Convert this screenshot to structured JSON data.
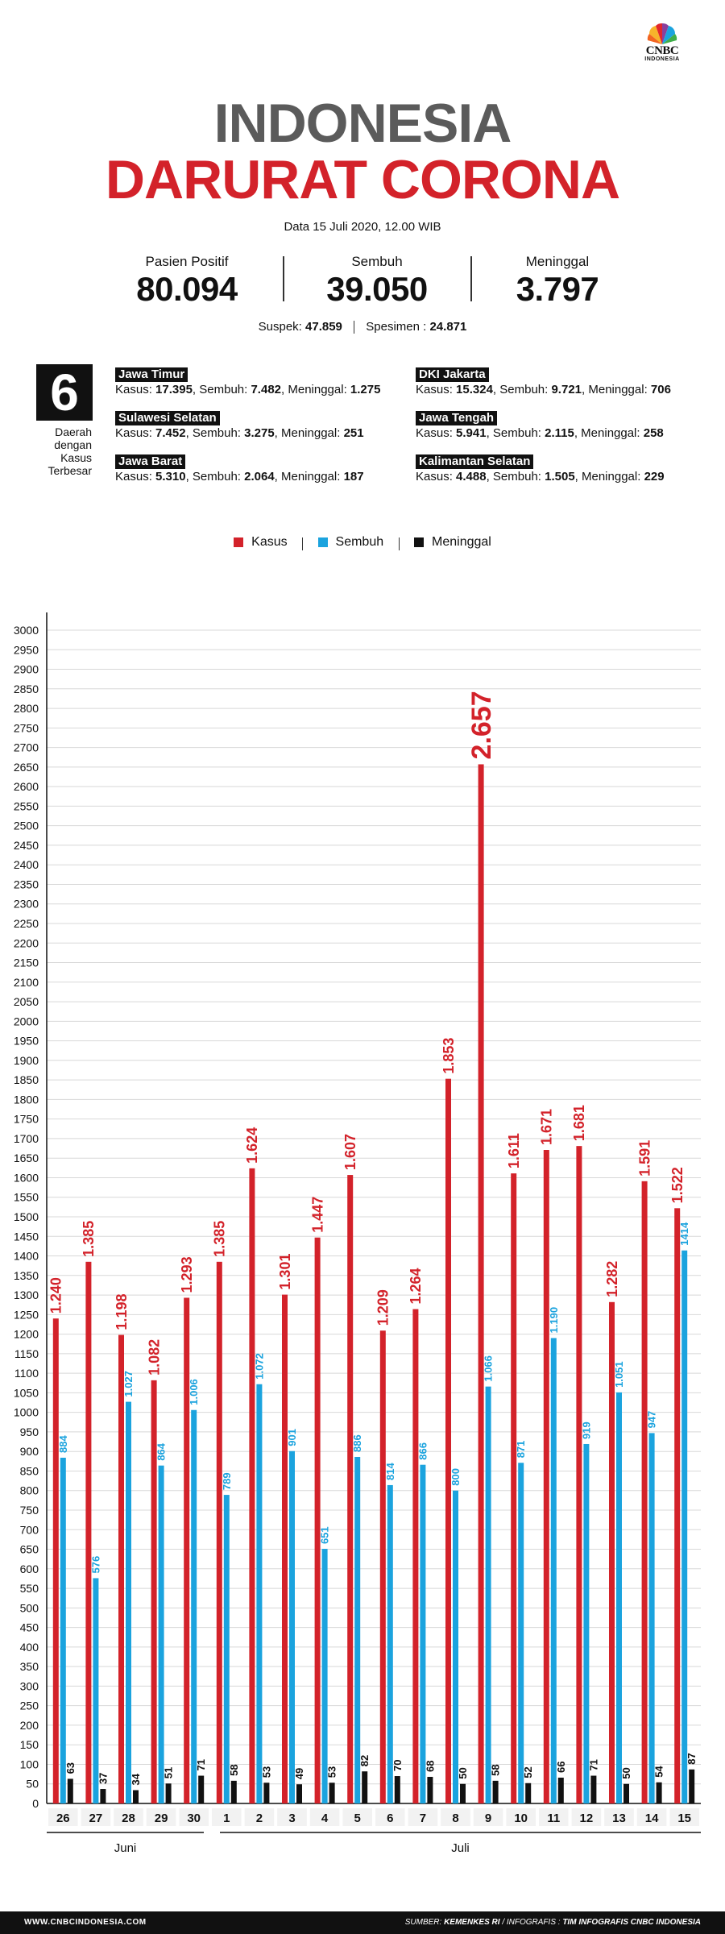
{
  "brand": {
    "name": "CNBC",
    "sub": "INDONESIA"
  },
  "header": {
    "title_line1": "INDONESIA",
    "title_line2": "DARURAT CORONA",
    "date": "Data 15 Juli 2020, 12.00 WIB"
  },
  "stats": [
    {
      "label": "Pasien Positif",
      "value": "80.094"
    },
    {
      "label": "Sembuh",
      "value": "39.050"
    },
    {
      "label": "Meninggal",
      "value": "3.797"
    }
  ],
  "substats": {
    "suspek_label": "Suspek:",
    "suspek_value": "47.859",
    "spesimen_label": "Spesimen :",
    "spesimen_value": "24.871"
  },
  "regions_block": {
    "count": "6",
    "label": "Daerah dengan Kasus Terbesar",
    "regions": [
      {
        "name": "Jawa Timur",
        "kasus": "17.395",
        "sembuh": "7.482",
        "meninggal": "1.275"
      },
      {
        "name": "Sulawesi Selatan",
        "kasus": "7.452",
        "sembuh": "3.275",
        "meninggal": "251"
      },
      {
        "name": "Jawa Barat",
        "kasus": "5.310",
        "sembuh": "2.064",
        "meninggal": "187"
      },
      {
        "name": "DKI Jakarta",
        "kasus": "15.324",
        "sembuh": "9.721",
        "meninggal": "706"
      },
      {
        "name": "Jawa Tengah",
        "kasus": "5.941",
        "sembuh": "2.115",
        "meninggal": "258"
      },
      {
        "name": "Kalimantan Selatan",
        "kasus": "4.488",
        "sembuh": "1.505",
        "meninggal": "229"
      }
    ],
    "kasus_label": "Kasus:",
    "sembuh_label": "Sembuh:",
    "meninggal_label": "Meninggal:"
  },
  "colors": {
    "kasus": "#d3222a",
    "sembuh": "#1ba3de",
    "meninggal": "#111111",
    "title_gray": "#5b5b5b"
  },
  "chart_data": {
    "type": "bar",
    "title": "",
    "xlabel": "",
    "ylabel": "",
    "ylim": [
      0,
      3000
    ],
    "ytick_step": 50,
    "legend": "top-center",
    "categories": [
      "26",
      "27",
      "28",
      "29",
      "30",
      "1",
      "2",
      "3",
      "4",
      "5",
      "6",
      "7",
      "8",
      "9",
      "10",
      "11",
      "12",
      "13",
      "14",
      "15"
    ],
    "groups": [
      {
        "label": "Juni",
        "categories": [
          "26",
          "27",
          "28",
          "29",
          "30"
        ]
      },
      {
        "label": "Juli",
        "categories": [
          "1",
          "2",
          "3",
          "4",
          "5",
          "6",
          "7",
          "8",
          "9",
          "10",
          "11",
          "12",
          "13",
          "14",
          "15"
        ]
      }
    ],
    "series": [
      {
        "name": "Kasus",
        "color": "#d3222a",
        "values": [
          1240,
          1385,
          1198,
          1082,
          1293,
          1385,
          1624,
          1301,
          1447,
          1607,
          1209,
          1264,
          1853,
          2657,
          1611,
          1671,
          1681,
          1282,
          1591,
          1522
        ],
        "labels": [
          "1.240",
          "1.385",
          "1.198",
          "1.082",
          "1.293",
          "1.385",
          "1.624",
          "1.301",
          "1.447",
          "1.607",
          "1.209",
          "1.264",
          "1.853",
          "2.657",
          "1.611",
          "1.671",
          "1.681",
          "1.282",
          "1.591",
          "1.522"
        ]
      },
      {
        "name": "Sembuh",
        "color": "#1ba3de",
        "values": [
          884,
          576,
          1027,
          864,
          1006,
          789,
          1072,
          901,
          651,
          886,
          814,
          866,
          800,
          1066,
          871,
          1190,
          919,
          1051,
          947,
          1414
        ],
        "labels": [
          "884",
          "576",
          "1.027",
          "864",
          "1.006",
          "789",
          "1.072",
          "901",
          "651",
          "886",
          "814",
          "866",
          "800",
          "1.066",
          "871",
          "1.190",
          "919",
          "1.051",
          "947",
          "1414"
        ]
      },
      {
        "name": "Meninggal",
        "color": "#111111",
        "values": [
          63,
          37,
          34,
          51,
          71,
          58,
          53,
          49,
          53,
          82,
          70,
          68,
          50,
          58,
          52,
          66,
          71,
          50,
          54,
          87
        ],
        "labels": [
          "63",
          "37",
          "34",
          "51",
          "71",
          "58",
          "53",
          "49",
          "53",
          "82",
          "70",
          "68",
          "50",
          "58",
          "52",
          "66",
          "71",
          "50",
          "54",
          "87"
        ]
      }
    ]
  },
  "footer": {
    "website": "WWW.CNBCINDONESIA.COM",
    "source_label": "SUMBER:",
    "source": "KEMENKES RI",
    "infographic_label": "/ INFOGRAFIS :",
    "infographic": "TIM INFOGRAFIS CNBC INDONESIA"
  }
}
